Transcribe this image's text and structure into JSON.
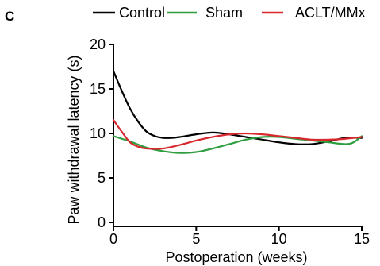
{
  "panel_label": "C",
  "colors": {
    "axis": "#000000"
  },
  "chart_data": {
    "type": "line",
    "title": "",
    "xlabel": "Postoperation (weeks)",
    "ylabel": "Paw withdrawal latency (s)",
    "xlim": [
      0,
      15
    ],
    "ylim": [
      0,
      20
    ],
    "x_ticks": [
      0,
      5,
      10,
      15
    ],
    "y_ticks": [
      0,
      5,
      10,
      15,
      20
    ],
    "grid": false,
    "legend_position": "top",
    "series": [
      {
        "name": "Control",
        "color": "#000000",
        "x": [
          0,
          0.5,
          1,
          1.5,
          2,
          2.5,
          3,
          3.5,
          4,
          5,
          6,
          7,
          8,
          9,
          10,
          11,
          12,
          13,
          14,
          15
        ],
        "y": [
          17.0,
          14.8,
          12.8,
          11.3,
          10.2,
          9.7,
          9.5,
          9.5,
          9.6,
          9.9,
          10.1,
          9.9,
          9.6,
          9.3,
          9.0,
          8.8,
          8.8,
          9.1,
          9.5,
          9.5
        ]
      },
      {
        "name": "Sham",
        "color": "#2e9e3e",
        "x": [
          0,
          1,
          2,
          3,
          4,
          5,
          6,
          7,
          8,
          9,
          10,
          11,
          12,
          13,
          14,
          14.5,
          15
        ],
        "y": [
          9.7,
          9.1,
          8.4,
          8.0,
          7.8,
          7.9,
          8.3,
          8.8,
          9.3,
          9.6,
          9.6,
          9.4,
          9.2,
          9.0,
          8.8,
          9.0,
          9.7
        ]
      },
      {
        "name": "ACLT/MMx",
        "color": "#d9272e",
        "x": [
          0,
          0.5,
          1,
          1.5,
          2,
          3,
          4,
          5,
          6,
          7,
          8,
          9,
          10,
          11,
          12,
          13,
          14,
          15
        ],
        "y": [
          11.5,
          10.2,
          9.0,
          8.5,
          8.3,
          8.3,
          8.7,
          9.2,
          9.6,
          9.9,
          10.0,
          9.9,
          9.7,
          9.5,
          9.3,
          9.3,
          9.4,
          9.6
        ]
      }
    ]
  }
}
